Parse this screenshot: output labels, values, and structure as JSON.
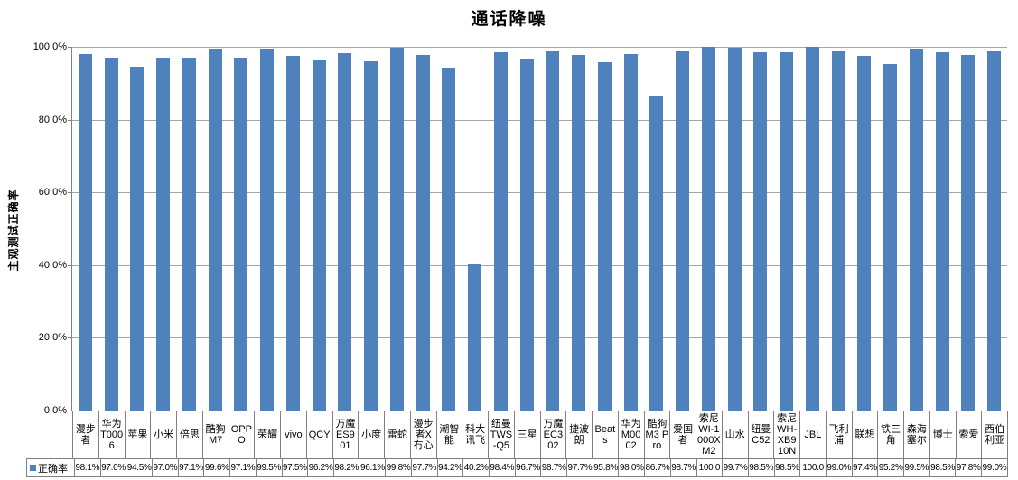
{
  "chart_data": {
    "type": "bar",
    "title": "通话降噪",
    "ylabel": "主观测试正确率",
    "legend_label": "正确率",
    "bar_color": "#4F81BD",
    "ylim": [
      0,
      100
    ],
    "ytick_labels": [
      "0.0%",
      "20.0%",
      "40.0%",
      "60.0%",
      "80.0%",
      "100.0%"
    ],
    "grid": true,
    "legend_position": "bottom-left-table",
    "categories": [
      "漫步者",
      "华为T0006",
      "苹果",
      "小米",
      "倍思",
      "酷狗M7",
      "OPPO",
      "荣耀",
      "vivo",
      "QCY",
      "万魔ES901",
      "小度",
      "雷蛇",
      "漫步者X冇心",
      "潮智能",
      "科大讯飞",
      "纽曼TWS-Q5",
      "三星",
      "万魔EC302",
      "捷波朗",
      "Beats",
      "华为M0002",
      "酷狗M3 Pro",
      "爱国者",
      "索尼WI-1000XM2",
      "山水",
      "纽曼C52",
      "索尼WH-XB910N",
      "JBL",
      "飞利浦",
      "联想",
      "铁三角",
      "森海塞尔",
      "博士",
      "索爱",
      "西伯利亚"
    ],
    "values": [
      98.1,
      97.0,
      94.5,
      97.0,
      97.1,
      99.6,
      97.1,
      99.5,
      97.5,
      96.2,
      98.2,
      96.1,
      99.8,
      97.7,
      94.2,
      40.2,
      98.4,
      96.7,
      98.7,
      97.7,
      95.8,
      98.0,
      86.7,
      98.7,
      100.0,
      99.7,
      98.5,
      98.5,
      100.0,
      99.0,
      97.4,
      95.2,
      99.5,
      98.5,
      97.8,
      99.0
    ],
    "value_labels": [
      "98.1%",
      "97.0%",
      "94.5%",
      "97.0%",
      "97.1%",
      "99.6%",
      "97.1%",
      "99.5%",
      "97.5%",
      "96.2%",
      "98.2%",
      "96.1%",
      "99.8%",
      "97.7%",
      "94.2%",
      "40.2%",
      "98.4%",
      "96.7%",
      "98.7%",
      "97.7%",
      "95.8%",
      "98.0%",
      "86.7%",
      "98.7%",
      "100.0",
      "99.7%",
      "98.5%",
      "98.5%",
      "100.0",
      "99.0%",
      "97.4%",
      "95.2%",
      "99.5%",
      "98.5%",
      "97.8%",
      "99.0%"
    ]
  }
}
